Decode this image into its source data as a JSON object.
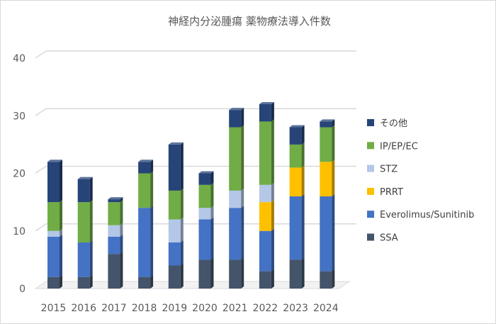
{
  "chart_data": {
    "type": "bar",
    "stacked": true,
    "style": "3d-column",
    "title": "神経内分泌腫瘍 薬物療法導入件数",
    "xlabel": "",
    "ylabel": "",
    "ylim": [
      0,
      40
    ],
    "yticks": [
      0,
      10,
      20,
      30,
      40
    ],
    "grid": true,
    "legend_position": "right",
    "categories": [
      "2015",
      "2016",
      "2017",
      "2018",
      "2019",
      "2020",
      "2021",
      "2022",
      "2023",
      "2024"
    ],
    "series": [
      {
        "name": "SSA",
        "color": "#44546a",
        "values": [
          2,
          2,
          6,
          2,
          4,
          5,
          5,
          3,
          5,
          3
        ]
      },
      {
        "name": "Everolimus/Sunitinib",
        "color": "#4472c4",
        "values": [
          7,
          6,
          3,
          12,
          4,
          7,
          9,
          7,
          11,
          13
        ]
      },
      {
        "name": "PRRT",
        "color": "#ffc000",
        "values": [
          0,
          0,
          0,
          0,
          0,
          0,
          0,
          5,
          5,
          6
        ]
      },
      {
        "name": "STZ",
        "color": "#b4c7e7",
        "values": [
          1,
          0,
          2,
          0,
          4,
          2,
          3,
          3,
          0,
          0
        ]
      },
      {
        "name": "IP/EP/EC",
        "color": "#70ad47",
        "values": [
          5,
          7,
          4,
          6,
          5,
          4,
          11,
          11,
          4,
          6
        ]
      },
      {
        "name": "その他",
        "color": "#264478",
        "values": [
          7,
          4,
          0.5,
          2,
          8,
          2,
          3,
          3,
          3,
          1
        ]
      }
    ]
  }
}
